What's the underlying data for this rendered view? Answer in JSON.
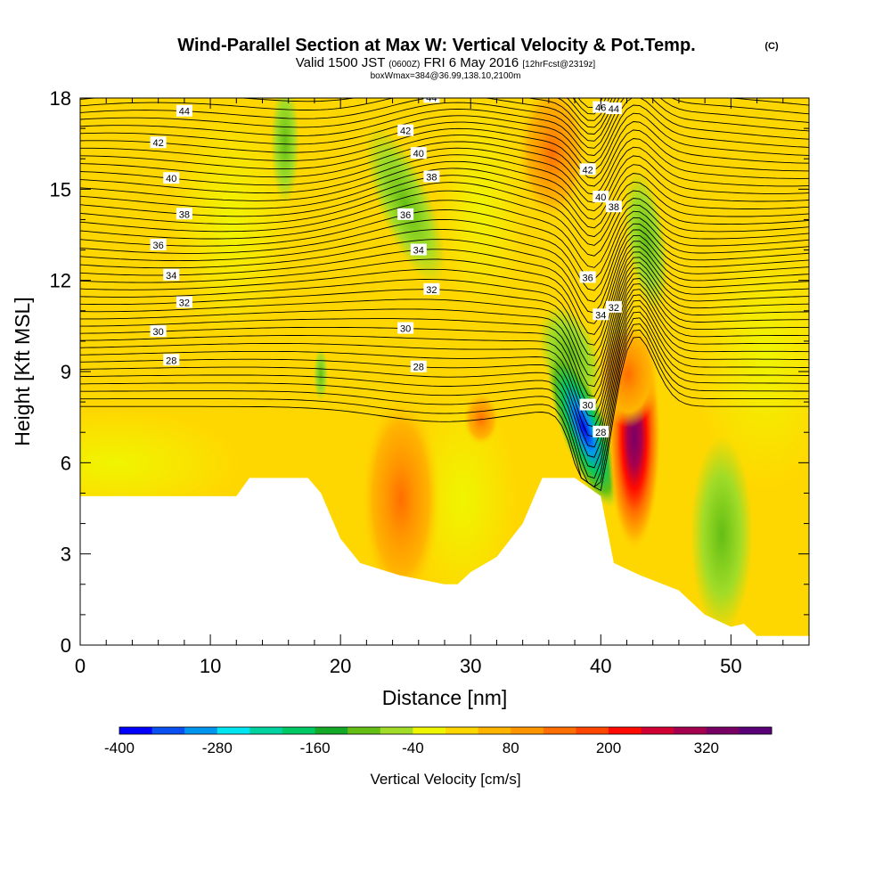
{
  "chart_data": {
    "type": "heatmap",
    "title": "Wind-Parallel Section at Max W: Vertical Velocity & Pot.Temp.",
    "title_suffix": "(C)",
    "subtitle": {
      "prefix": "Valid 1500 JST",
      "utc": "(0600Z)",
      "date": "FRI 6 May 2016",
      "forecast": "[12hrFcst@2319z]"
    },
    "box_info": "boxWmax=384@36.99,138.10,2100m",
    "xlabel": "Distance [nm]",
    "ylabel": "Height [Kft MSL]",
    "xlim": [
      0,
      56
    ],
    "ylim": [
      0,
      18
    ],
    "x_ticks": [
      "0",
      "10",
      "20",
      "30",
      "40",
      "50"
    ],
    "y_ticks": [
      "0",
      "3",
      "6",
      "9",
      "12",
      "15",
      "18"
    ],
    "colorbar": {
      "label": "Vertical Velocity [cm/s]",
      "tick_labels": [
        "-400",
        "-280",
        "-160",
        "-40",
        "80",
        "200",
        "320"
      ],
      "colors": [
        "#0000ff",
        "#0a50f0",
        "#0096f0",
        "#00e6f0",
        "#00d2a0",
        "#00c864",
        "#14aa28",
        "#64be14",
        "#a0dc28",
        "#f0f500",
        "#ffd700",
        "#ffb400",
        "#ff9600",
        "#ff6e00",
        "#ff4600",
        "#ff0a00",
        "#d20032",
        "#a50050",
        "#780064",
        "#5a0078"
      ]
    },
    "theta_contour_labels": [
      "46",
      "44",
      "42",
      "40",
      "38",
      "36",
      "34",
      "32",
      "30",
      "28"
    ],
    "terrain_height_kft": [
      [
        0,
        4.9
      ],
      [
        12,
        4.9
      ],
      [
        13,
        5.5
      ],
      [
        17.5,
        5.5
      ],
      [
        18.5,
        5.0
      ],
      [
        20,
        3.5
      ],
      [
        21.5,
        2.7
      ],
      [
        24.5,
        2.3
      ],
      [
        28,
        2.0
      ],
      [
        29,
        2.0
      ],
      [
        30,
        2.4
      ],
      [
        32,
        2.9
      ],
      [
        34,
        4.0
      ],
      [
        35.5,
        5.5
      ],
      [
        38,
        5.5
      ],
      [
        40,
        4.9
      ],
      [
        41,
        2.7
      ],
      [
        43,
        2.3
      ],
      [
        46,
        1.8
      ],
      [
        48,
        1.0
      ],
      [
        50,
        0.6
      ],
      [
        51,
        0.7
      ],
      [
        52,
        0.3
      ],
      [
        56,
        0.3
      ]
    ],
    "vertical_velocity_features": [
      {
        "x": 39.5,
        "y": 6.2,
        "w_cm_s": -380
      },
      {
        "x": 38.2,
        "y": 9.5,
        "w_cm_s": -160
      },
      {
        "x": 42.3,
        "y": 6.5,
        "w_cm_s": 320
      },
      {
        "x": 42.6,
        "y": 9.2,
        "w_cm_s": 140
      },
      {
        "x": 24.8,
        "y": 5.0,
        "w_cm_s": 140
      },
      {
        "x": 16,
        "y": 16.5,
        "w_cm_s": -80
      },
      {
        "x": 25.5,
        "y": 14,
        "w_cm_s": -80
      },
      {
        "x": 44,
        "y": 13,
        "w_cm_s": -80
      },
      {
        "x": 48.5,
        "y": 3.2,
        "w_cm_s": -60
      },
      {
        "x": 18.5,
        "y": 9.3,
        "w_cm_s": -60
      }
    ]
  }
}
